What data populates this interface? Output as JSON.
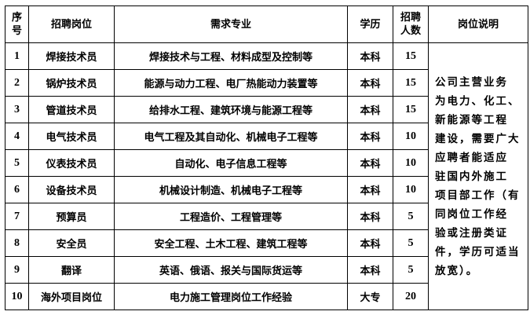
{
  "headers": {
    "no": "序号",
    "position": "招聘岗位",
    "major": "需求专业",
    "degree": "学历",
    "count": "招聘人数",
    "desc": "岗位说明"
  },
  "rows": [
    {
      "no": "1",
      "position": "焊接技术员",
      "major": "焊接技术与工程、材料成型及控制等",
      "degree": "本科",
      "count": "15"
    },
    {
      "no": "2",
      "position": "锅炉技术员",
      "major": "能源与动力工程、电厂热能动力装置等",
      "degree": "本科",
      "count": "15"
    },
    {
      "no": "3",
      "position": "管道技术员",
      "major": "给排水工程、建筑环境与能源工程等",
      "degree": "本科",
      "count": "15"
    },
    {
      "no": "4",
      "position": "电气技术员",
      "major": "电气工程及其自动化、机械电子工程等",
      "degree": "本科",
      "count": "10"
    },
    {
      "no": "5",
      "position": "仪表技术员",
      "major": "自动化、电子信息工程等",
      "degree": "本科",
      "count": "10"
    },
    {
      "no": "6",
      "position": "设备技术员",
      "major": "机械设计制造、机械电子工程等",
      "degree": "本科",
      "count": "10"
    },
    {
      "no": "7",
      "position": "预算员",
      "major": "工程造价、工程管理等",
      "degree": "本科",
      "count": "5"
    },
    {
      "no": "8",
      "position": "安全员",
      "major": "安全工程、土木工程、建筑工程等",
      "degree": "本科",
      "count": "5"
    },
    {
      "no": "9",
      "position": "翻译",
      "major": "英语、俄语、报关与国际货运等",
      "degree": "本科",
      "count": "5"
    },
    {
      "no": "10",
      "position": "海外项目岗位",
      "major": "电力施工管理岗位工作经验",
      "degree": "大专",
      "count": "20"
    }
  ],
  "description_lines": [
    "公司主营业务",
    "为电力、化工、",
    "新能源等工程",
    "建设，需要广大",
    "应聘者能适应",
    "驻国内外施工",
    "项目部工作（有",
    "同岗位工作经",
    "验或注册类证",
    "件，学历可适当",
    "放宽）。"
  ]
}
